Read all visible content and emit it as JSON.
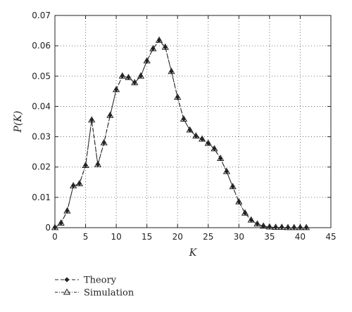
{
  "chart_data": {
    "type": "line",
    "title": "",
    "xlabel": "K",
    "ylabel": "P(K)",
    "xlim": [
      0,
      45
    ],
    "ylim": [
      0,
      0.07
    ],
    "xticks": [
      0,
      5,
      10,
      15,
      20,
      25,
      30,
      35,
      40,
      45
    ],
    "yticks": [
      0,
      0.01,
      0.02,
      0.03,
      0.04,
      0.05,
      0.06,
      0.07
    ],
    "xtick_labels": [
      "0",
      "5",
      "10",
      "15",
      "20",
      "25",
      "30",
      "35",
      "40",
      "45"
    ],
    "ytick_labels": [
      "0",
      "0.01",
      "0.02",
      "0.03",
      "0.04",
      "0.05",
      "0.06",
      "0.07"
    ],
    "grid": true,
    "legend_position": "bottom-left-outside",
    "x": [
      0,
      1,
      2,
      3,
      4,
      5,
      6,
      7,
      8,
      9,
      10,
      11,
      12,
      13,
      14,
      15,
      16,
      17,
      18,
      19,
      20,
      21,
      22,
      23,
      24,
      25,
      26,
      27,
      28,
      29,
      30,
      31,
      32,
      33,
      34,
      35,
      36,
      37,
      38,
      39,
      40,
      41
    ],
    "series": [
      {
        "name": "Theory",
        "marker": "diamond",
        "color": "#222222",
        "values": [
          0,
          0.0015,
          0.0055,
          0.0138,
          0.0145,
          0.0205,
          0.0355,
          0.0208,
          0.028,
          0.037,
          0.0455,
          0.05,
          0.0495,
          0.0478,
          0.05,
          0.055,
          0.059,
          0.0618,
          0.0595,
          0.0515,
          0.043,
          0.0358,
          0.0322,
          0.0302,
          0.0292,
          0.0278,
          0.026,
          0.0228,
          0.0185,
          0.0135,
          0.0085,
          0.0048,
          0.0025,
          0.0012,
          0.0005,
          0.0002,
          0.0001,
          0.0001,
          0.0,
          0.0,
          0.0,
          0.0
        ]
      },
      {
        "name": "Simulation",
        "marker": "triangle",
        "color": "#222222",
        "values": [
          0,
          0.0015,
          0.0055,
          0.0138,
          0.0145,
          0.0205,
          0.0355,
          0.0208,
          0.028,
          0.037,
          0.0455,
          0.05,
          0.0495,
          0.0478,
          0.05,
          0.055,
          0.059,
          0.0618,
          0.0595,
          0.0515,
          0.043,
          0.0358,
          0.0322,
          0.0302,
          0.0292,
          0.0278,
          0.026,
          0.0228,
          0.0185,
          0.0135,
          0.0085,
          0.0048,
          0.0025,
          0.0012,
          0.0005,
          0.0002,
          0.0001,
          0.0001,
          0.0,
          0.0,
          0.0,
          0.0
        ]
      }
    ]
  }
}
